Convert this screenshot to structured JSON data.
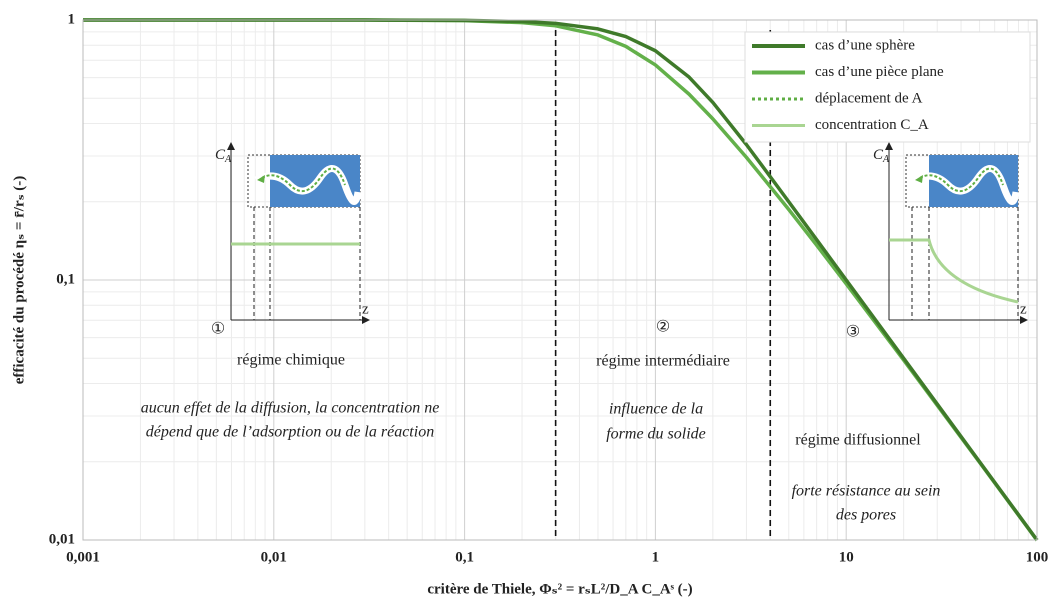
{
  "chart_data": {
    "type": "line",
    "x_label": "critère de Thiele, Φₛ² = rₛL²/D_A C_Aˢ (-)",
    "y_label": "efficacité du procédé ηₛ = r̄/rₛ (-)",
    "log_x": true,
    "log_y": true,
    "grid": true,
    "xlim": [
      0.001,
      100
    ],
    "xticks": [
      {
        "value": 0.001,
        "label": "0,001"
      },
      {
        "value": 0.01,
        "label": "0,01"
      },
      {
        "value": 0.1,
        "label": "0,1"
      },
      1,
      10,
      100
    ],
    "ylim": [
      0.01,
      1
    ],
    "yticks": [
      {
        "value": 0.01,
        "label": "0,01"
      },
      {
        "value": 0.1,
        "label": "0,1"
      },
      1
    ],
    "x": [
      0.001,
      0.01,
      0.03,
      0.1,
      0.2,
      0.3,
      0.5,
      0.7,
      1,
      1.5,
      2,
      3,
      5,
      7,
      10,
      20,
      50,
      100
    ],
    "series": [
      {
        "name": "cas  d’une sphère",
        "color": "#3f7a2a",
        "values": [
          1,
          1,
          0.9997,
          0.9967,
          0.9868,
          0.971,
          0.9242,
          0.8634,
          0.7616,
          0.6034,
          0.482,
          0.3317,
          0.2,
          0.1429,
          0.1,
          0.05,
          0.02,
          0.01
        ]
      },
      {
        "name": "cas  d’une pièce plane",
        "color": "#63b04a",
        "values": [
          1,
          1,
          0.9995,
          0.994,
          0.9768,
          0.95,
          0.876,
          0.7917,
          0.6716,
          0.5187,
          0.4167,
          0.2963,
          0.1867,
          0.1361,
          0.0967,
          0.0492,
          0.0199,
          0.00997
        ]
      }
    ],
    "inset_legend": [
      {
        "name": "déplacement de A",
        "color": "#5fae44",
        "dash": "3 3"
      },
      {
        "name": "concentration C_A",
        "color": "#a9d592",
        "dash": ""
      }
    ],
    "boundaries": [
      0.3,
      4
    ],
    "regions": [
      {
        "number": "①",
        "title": "régime chimique",
        "notes": [
          "aucun effet de la diffusion, la concentration ne",
          "dépend que de l’adsorption ou de la réaction"
        ]
      },
      {
        "number": "②",
        "title": "régime intermédiaire",
        "notes": [
          "influence de la",
          "forme du solide"
        ]
      },
      {
        "number": "③",
        "title": "régime diffusionnel",
        "notes": [
          "forte résistance au sein",
          "des pores"
        ]
      }
    ],
    "inset_labels": {
      "y": "C",
      "y_sub": "A",
      "x": "z"
    }
  }
}
